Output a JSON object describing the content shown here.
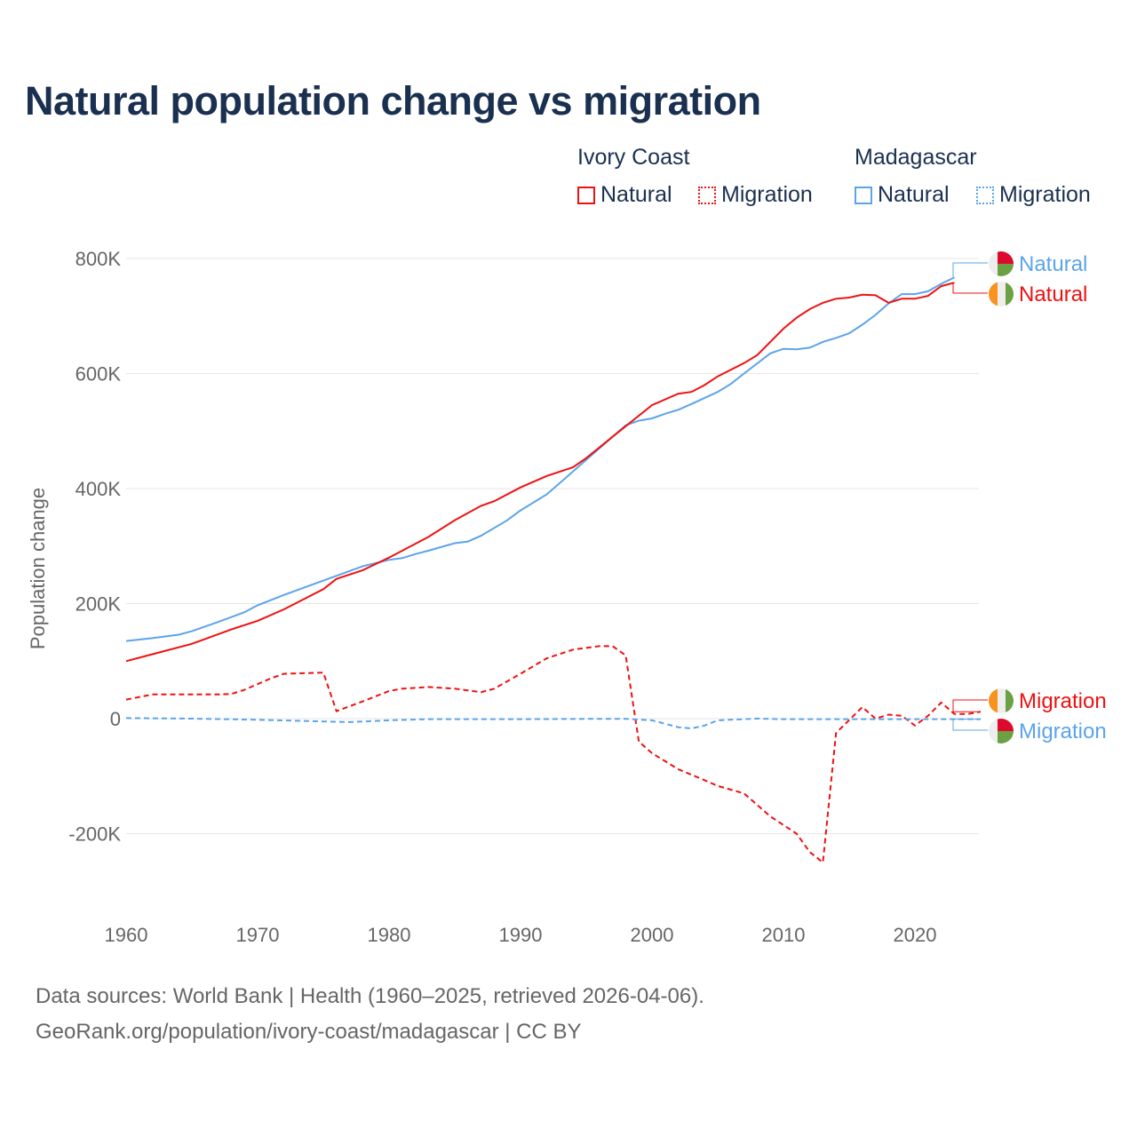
{
  "title": "Natural population change vs migration",
  "legend": {
    "groups": [
      {
        "label": "Ivory Coast",
        "items": [
          {
            "label": "Natural",
            "style": "solid"
          },
          {
            "label": "Migration",
            "style": "dotted"
          }
        ],
        "color": "#ee1111"
      },
      {
        "label": "Madagascar",
        "items": [
          {
            "label": "Natural",
            "style": "solid"
          },
          {
            "label": "Migration",
            "style": "dotted"
          }
        ],
        "color": "#5ba4ea"
      }
    ]
  },
  "footer": {
    "line1": "Data sources: World Bank | Health (1960–2025, retrieved 2026-04-06).",
    "line2": "GeoRank.org/population/ivory-coast/madagascar | CC BY"
  },
  "chart_data": {
    "type": "line",
    "title": "Natural population change vs migration",
    "xlabel": "",
    "ylabel": "Population change",
    "xlim": [
      1960,
      2025
    ],
    "ylim": [
      -300000,
      800000
    ],
    "x_ticks": [
      1960,
      1970,
      1980,
      1990,
      2000,
      2010,
      2020
    ],
    "y_ticks": [
      {
        "v": -200000,
        "label": "-200K"
      },
      {
        "v": 0,
        "label": "0"
      },
      {
        "v": 200000,
        "label": "200K"
      },
      {
        "v": 400000,
        "label": "400K"
      },
      {
        "v": 600000,
        "label": "600K"
      },
      {
        "v": 800000,
        "label": "800K"
      }
    ],
    "grid": true,
    "legend_position": "top-right",
    "series": [
      {
        "name": "Madagascar Natural",
        "end_label": "Natural",
        "color": "#5ba4ea",
        "dash": false,
        "flag": "madagascar",
        "x": [
          1960,
          1962,
          1964,
          1965,
          1967,
          1969,
          1970,
          1972,
          1975,
          1978,
          1980,
          1981,
          1982,
          1983,
          1985,
          1986,
          1987,
          1989,
          1990,
          1992,
          1994,
          1996,
          1998,
          1999,
          2000,
          2001,
          2002,
          2003,
          2005,
          2006,
          2007,
          2009,
          2010,
          2011,
          2012,
          2013,
          2014,
          2015,
          2016,
          2017,
          2018,
          2019,
          2020,
          2021,
          2022,
          2023
        ],
        "y": [
          135000,
          140000,
          146000,
          152000,
          168000,
          185000,
          197000,
          215000,
          240000,
          265000,
          276000,
          279000,
          286000,
          292000,
          305000,
          308000,
          318000,
          345000,
          362000,
          390000,
          430000,
          470000,
          510000,
          518000,
          522000,
          530000,
          537000,
          547000,
          568000,
          582000,
          600000,
          635000,
          643000,
          642000,
          645000,
          655000,
          662000,
          670000,
          685000,
          702000,
          722000,
          738000,
          738000,
          743000,
          756000,
          767000
        ]
      },
      {
        "name": "Ivory Coast Natural",
        "end_label": "Natural",
        "color": "#ee1111",
        "dash": false,
        "flag": "ivory-coast",
        "x": [
          1960,
          1962,
          1965,
          1968,
          1970,
          1972,
          1975,
          1976,
          1978,
          1980,
          1983,
          1985,
          1987,
          1988,
          1990,
          1992,
          1994,
          1995,
          1997,
          2000,
          2002,
          2003,
          2004,
          2005,
          2007,
          2008,
          2010,
          2011,
          2012,
          2013,
          2014,
          2015,
          2016,
          2017,
          2018,
          2019,
          2020,
          2021,
          2022,
          2023
        ],
        "y": [
          100000,
          112000,
          130000,
          155000,
          170000,
          190000,
          225000,
          243000,
          258000,
          280000,
          316000,
          345000,
          370000,
          378000,
          402000,
          422000,
          437000,
          453000,
          490000,
          545000,
          565000,
          568000,
          580000,
          595000,
          618000,
          632000,
          678000,
          697000,
          712000,
          723000,
          730000,
          732000,
          737000,
          736000,
          723000,
          730000,
          730000,
          735000,
          752000,
          758000
        ]
      },
      {
        "name": "Ivory Coast Migration",
        "end_label": "Migration",
        "color": "#ee1111",
        "dash": true,
        "flag": "ivory-coast",
        "x": [
          1960,
          1962,
          1965,
          1967,
          1968,
          1969,
          1971,
          1972,
          1975,
          1976,
          1978,
          1980,
          1981,
          1983,
          1985,
          1987,
          1988,
          1990,
          1992,
          1994,
          1996,
          1997,
          1998,
          1999,
          2000,
          2002,
          2004,
          2005,
          2007,
          2008,
          2009,
          2011,
          2012,
          2013,
          2014,
          2016,
          2017,
          2018,
          2019,
          2020,
          2021,
          2022,
          2023,
          2024,
          2025
        ],
        "y": [
          33000,
          42000,
          42000,
          42000,
          43000,
          50000,
          70000,
          78000,
          80000,
          13000,
          30000,
          48000,
          52000,
          55000,
          52000,
          46000,
          52000,
          78000,
          105000,
          120000,
          126000,
          126000,
          110000,
          -40000,
          -60000,
          -88000,
          -107000,
          -117000,
          -130000,
          -150000,
          -170000,
          -200000,
          -232000,
          -250000,
          -25000,
          20000,
          0,
          7000,
          5000,
          -12000,
          5000,
          28000,
          8000,
          8000,
          12000
        ]
      },
      {
        "name": "Madagascar Migration",
        "end_label": "Migration",
        "color": "#5ba4ea",
        "dash": true,
        "flag": "madagascar",
        "x": [
          1960,
          1965,
          1970,
          1975,
          1977,
          1980,
          1983,
          1990,
          1995,
          1998,
          2000,
          2002,
          2003,
          2004,
          2005,
          2008,
          2010,
          2015,
          2020,
          2025
        ],
        "y": [
          1000,
          0,
          -2000,
          -5000,
          -6000,
          -3000,
          -1000,
          -1000,
          -500,
          -500,
          -3000,
          -15000,
          -17000,
          -12000,
          -3000,
          0,
          -1000,
          -1000,
          -1000,
          -1000
        ]
      }
    ]
  }
}
